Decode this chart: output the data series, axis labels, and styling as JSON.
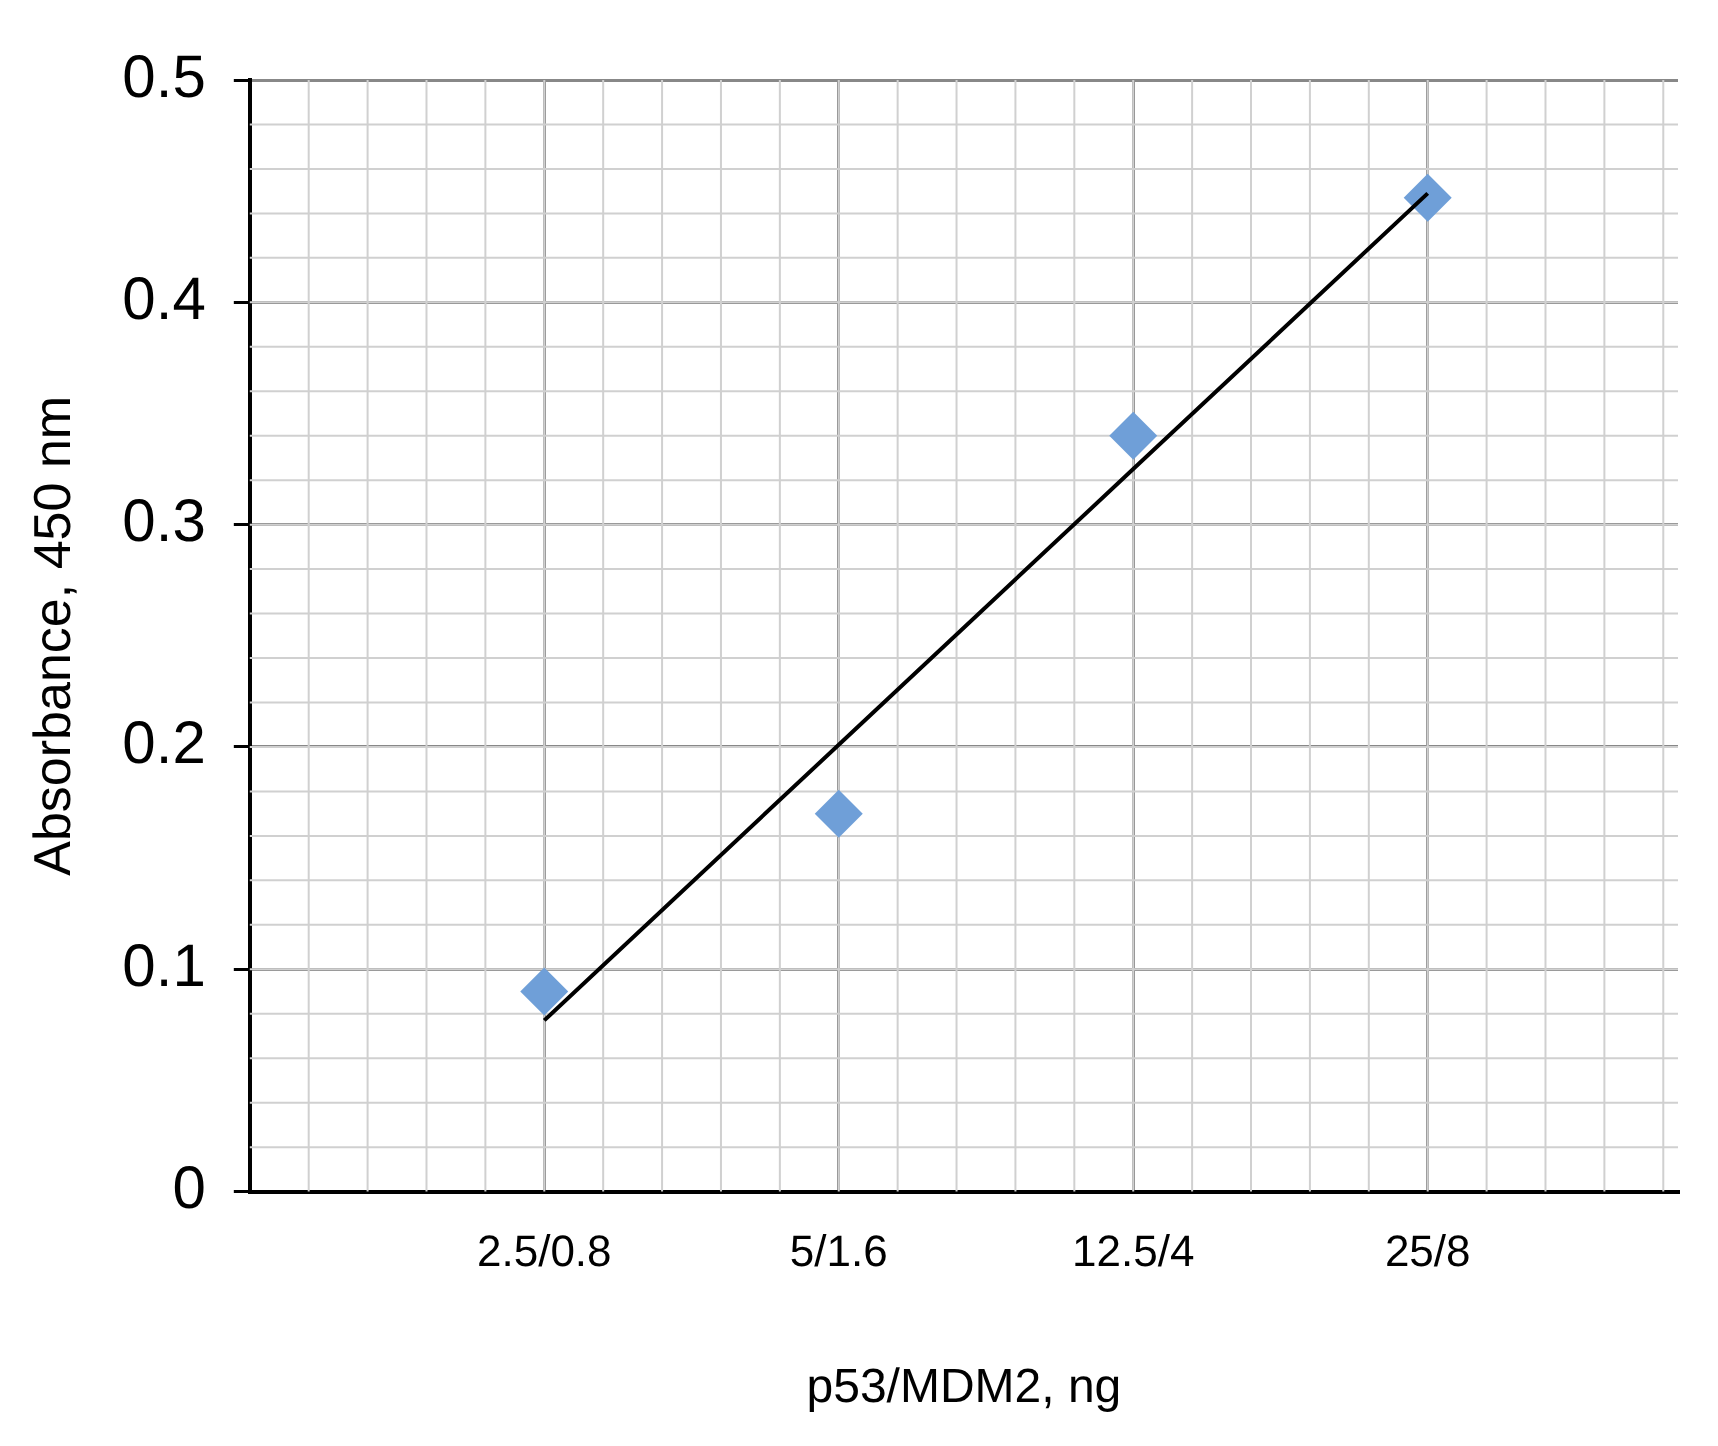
{
  "chart_data": {
    "type": "scatter",
    "xlabel": "p53/MDM2, ng",
    "ylabel": "Absorbance, 450 nm",
    "categories": [
      "2.5/0.8",
      "5/1.6",
      "12.5/4",
      "25/8"
    ],
    "series": [
      {
        "color": "#6f9fd8",
        "marker": "diamond",
        "values": [
          0.09,
          0.17,
          0.34,
          0.447
        ]
      },
      {
        "type": "line",
        "color": "#000000",
        "marker": "none",
        "line_style": "solid",
        "values": [
          0.077,
          0.201,
          0.325,
          0.449
        ]
      }
    ],
    "ylim": [
      0,
      0.5
    ],
    "yticks": [
      0,
      0.1,
      0.2,
      0.3,
      0.4,
      0.5
    ],
    "grid": true,
    "legend": false
  }
}
